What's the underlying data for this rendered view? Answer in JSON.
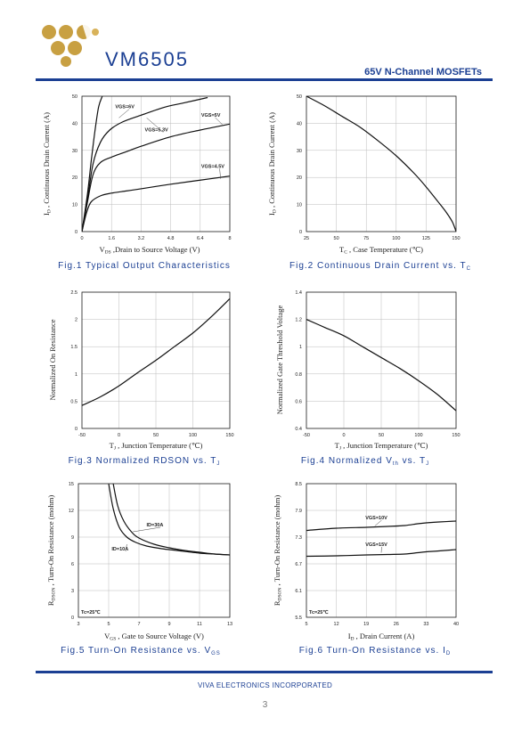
{
  "header": {
    "brand": "VM6505",
    "product": "65V N-Channel MOSFETs"
  },
  "footer": {
    "company": "VIVA ELECTRONICS INCORPORATED",
    "page": "3"
  },
  "chart_data": [
    {
      "type": "line",
      "fig_label": "Fig.1",
      "fig_title": "Typical Output Characteristics",
      "xlabel": "VDS ,Drain to Source Voltage (V)",
      "ylabel": "ID , Continuous Drain Current (A)",
      "xlim": [
        0,
        8
      ],
      "ylim": [
        0,
        50
      ],
      "xticks": [
        0,
        1.6,
        3.2,
        4.8,
        6.4,
        8
      ],
      "xtick_labels": [
        "0",
        "1.6",
        "3.2",
        "4.8",
        "6.4",
        "8"
      ],
      "yticks": [
        0,
        10,
        20,
        30,
        40,
        50
      ],
      "ytick_labels": [
        "0",
        "10",
        "20",
        "30",
        "40",
        "50"
      ],
      "series": [
        {
          "name": "VGS=6V",
          "label_at": [
            1.8,
            45.5
          ],
          "point": [
            2.0,
            42
          ],
          "x": [
            0,
            0.3,
            0.5,
            0.7,
            0.9,
            1.1
          ],
          "y": [
            0,
            14,
            26,
            37,
            46,
            50
          ]
        },
        {
          "name": "VGS=5.3V",
          "label_at": [
            3.4,
            37
          ],
          "point": [
            3.5,
            42
          ],
          "x": [
            0,
            0.3,
            0.6,
            1,
            1.5,
            2.2,
            3.2,
            4.5,
            5.5,
            6.8
          ],
          "y": [
            0,
            12,
            25,
            33,
            37.5,
            40.5,
            43,
            46,
            47.5,
            49.5
          ]
        },
        {
          "name": "VGS=5V",
          "label_at": [
            6.45,
            42.5
          ],
          "point": [
            7.6,
            39.5
          ],
          "x": [
            0,
            0.3,
            0.6,
            1,
            1.6,
            2.4,
            3.2,
            4.8,
            6.4,
            8
          ],
          "y": [
            0,
            11,
            21,
            25.5,
            27.5,
            29.5,
            31.5,
            35,
            37.5,
            39.7
          ]
        },
        {
          "name": "VGS=4.5V",
          "label_at": [
            6.45,
            23.5
          ],
          "point": [
            7.5,
            19.5
          ],
          "x": [
            0,
            0.25,
            0.5,
            1,
            1.6,
            2.4,
            3.2,
            4.8,
            6.4,
            8
          ],
          "y": [
            0,
            7,
            11,
            13.2,
            14.2,
            15,
            15.8,
            17.5,
            19,
            20.5
          ]
        }
      ]
    },
    {
      "type": "line",
      "fig_label": "Fig.2",
      "fig_title": "Continuous Drain Current vs. TC",
      "xlabel": "TC , Case Temperature (℃)",
      "ylabel": "ID , Continuous Drain Current (A)",
      "xlim": [
        25,
        150
      ],
      "ylim": [
        0,
        50
      ],
      "xticks": [
        25,
        50,
        75,
        100,
        125,
        150
      ],
      "xtick_labels": [
        "25",
        "50",
        "75",
        "100",
        "125",
        "150"
      ],
      "yticks": [
        0,
        10,
        20,
        30,
        40,
        50
      ],
      "ytick_labels": [
        "0",
        "10",
        "20",
        "30",
        "40",
        "50"
      ],
      "series": [
        {
          "name": "",
          "x": [
            25,
            40,
            55,
            70,
            85,
            100,
            115,
            125,
            135,
            142,
            147,
            150
          ],
          "y": [
            50,
            46.5,
            42.5,
            38.5,
            33.5,
            28,
            21.5,
            16.5,
            11,
            7,
            3.5,
            0
          ]
        }
      ]
    },
    {
      "type": "line",
      "fig_label": "Fig.3",
      "fig_title": "Normalized RDSON vs. TJ",
      "xlabel": "TJ , Junction Temperature (℃)",
      "ylabel": "Normalized On Resistance",
      "xlim": [
        -50,
        150
      ],
      "ylim": [
        0,
        2.5
      ],
      "xticks": [
        -50,
        0,
        50,
        100,
        150
      ],
      "xtick_labels": [
        "-50",
        "0",
        "50",
        "100",
        "150"
      ],
      "yticks": [
        0,
        0.5,
        1,
        1.5,
        2,
        2.5
      ],
      "ytick_labels": [
        "0",
        "0.5",
        "1",
        "1.5",
        "2",
        "2.5"
      ],
      "series": [
        {
          "name": "",
          "x": [
            -50,
            -25,
            0,
            25,
            50,
            75,
            100,
            125,
            150
          ],
          "y": [
            0.42,
            0.58,
            0.78,
            1.02,
            1.25,
            1.5,
            1.75,
            2.05,
            2.38
          ]
        }
      ]
    },
    {
      "type": "line",
      "fig_label": "Fig.4",
      "fig_title": "Normalized Vth vs. TJ",
      "xlabel": "TJ , Junction Temperature (℃)",
      "ylabel": "Normalized Gate Threshold Voltage",
      "xlim": [
        -50,
        150
      ],
      "ylim": [
        0.4,
        1.4
      ],
      "xticks": [
        -50,
        0,
        50,
        100,
        150
      ],
      "xtick_labels": [
        "-50",
        "0",
        "50",
        "100",
        "150"
      ],
      "yticks": [
        0.4,
        0.6,
        0.8,
        1,
        1.2,
        1.4
      ],
      "ytick_labels": [
        "0.4",
        "0.6",
        "0.8",
        "1",
        "1.2",
        "1.4"
      ],
      "series": [
        {
          "name": "",
          "x": [
            -50,
            -25,
            0,
            25,
            50,
            75,
            100,
            125,
            150
          ],
          "y": [
            1.2,
            1.14,
            1.08,
            1.0,
            0.92,
            0.84,
            0.75,
            0.65,
            0.53
          ]
        }
      ]
    },
    {
      "type": "line",
      "fig_label": "Fig.5",
      "fig_title": "Turn-On Resistance vs. VGS",
      "xlabel": "VGS , Gate to Source Voltage (V)",
      "ylabel": "RDSON , Turn-On Resistance (mohm)",
      "xlim": [
        3,
        13
      ],
      "ylim": [
        0,
        15
      ],
      "xticks": [
        3,
        5,
        7,
        9,
        11,
        13
      ],
      "xtick_labels": [
        "3",
        "5",
        "7",
        "9",
        "11",
        "13"
      ],
      "yticks": [
        0,
        3,
        6,
        9,
        12,
        15
      ],
      "ytick_labels": [
        "0",
        "3",
        "6",
        "9",
        "12",
        "15"
      ],
      "note": "Tc=25℃",
      "series": [
        {
          "name": "ID=30A",
          "label_at": [
            7.5,
            10.2
          ],
          "point": [
            6.6,
            9.6
          ],
          "x": [
            5.3,
            5.6,
            6,
            6.5,
            7,
            8,
            9,
            10,
            11,
            12,
            13
          ],
          "y": [
            15,
            12.5,
            10.8,
            9.6,
            8.9,
            8.2,
            7.8,
            7.5,
            7.3,
            7.1,
            7.0
          ]
        },
        {
          "name": "ID=10A",
          "label_at": [
            5.2,
            7.5
          ],
          "point": [
            6.2,
            8.2
          ],
          "x": [
            5.0,
            5.3,
            5.7,
            6.2,
            6.8,
            7.5,
            8.5,
            9.5,
            11,
            12,
            13
          ],
          "y": [
            15,
            12.2,
            10.1,
            9.0,
            8.4,
            8.0,
            7.7,
            7.5,
            7.2,
            7.1,
            7.0
          ]
        }
      ]
    },
    {
      "type": "line",
      "fig_label": "Fig.6",
      "fig_title": "Turn-On Resistance vs. ID",
      "xlabel": "ID , Drain Current (A)",
      "ylabel": "RDSON , Turn-On Resistance (mohm)",
      "xlim": [
        5,
        40
      ],
      "ylim": [
        5.5,
        8.5
      ],
      "xticks": [
        5,
        12,
        19,
        26,
        33,
        40
      ],
      "xtick_labels": [
        "5",
        "12",
        "19",
        "26",
        "33",
        "40"
      ],
      "yticks": [
        5.5,
        6.1,
        6.7,
        7.3,
        7.9,
        8.5
      ],
      "ytick_labels": [
        "5.5",
        "6.1",
        "6.7",
        "7.3",
        "7.9",
        "8.5"
      ],
      "note": "Tc=25℃",
      "series": [
        {
          "name": "VGS=10V",
          "label_at": [
            18.8,
            7.7
          ],
          "point": [
            21,
            7.55
          ],
          "x": [
            5,
            12,
            19,
            24,
            28,
            31,
            33,
            36,
            40
          ],
          "y": [
            7.45,
            7.5,
            7.52,
            7.54,
            7.56,
            7.6,
            7.62,
            7.64,
            7.66
          ]
        },
        {
          "name": "VGS=15V",
          "label_at": [
            18.8,
            7.1
          ],
          "point": [
            22.5,
            6.95
          ],
          "x": [
            5,
            12,
            19,
            24,
            28,
            31,
            33,
            36,
            40
          ],
          "y": [
            6.87,
            6.88,
            6.9,
            6.91,
            6.92,
            6.95,
            6.97,
            6.99,
            7.02
          ]
        }
      ]
    }
  ]
}
